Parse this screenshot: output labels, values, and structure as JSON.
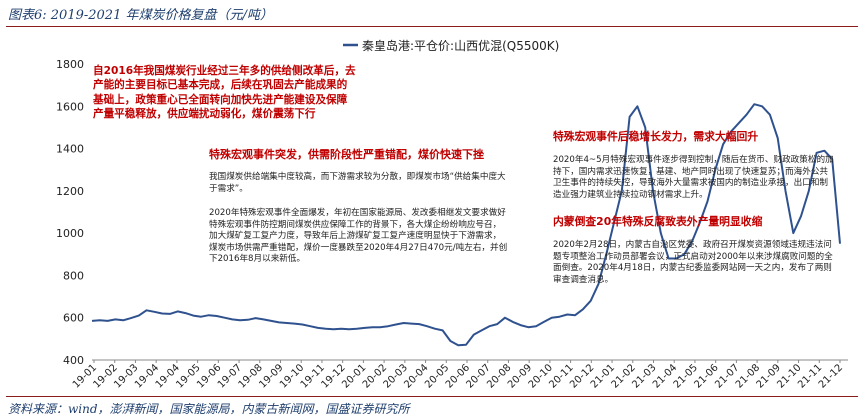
{
  "header": {
    "figure_title": "图表6:  2019-2021 年煤炭价格复盘（元/吨）"
  },
  "source": "资料来源：wind，澎湃新闻，国家能源局，内蒙古新闻网，国盛证券研究所",
  "annotations": {
    "box1": "自2016年我国煤炭行业经过三年多的供给侧改革后，去产能的主要目标已基本完成，后续在巩固去产能成果的基础上，政策重心已全面转向加快先进产能建设及保障产量平稳释放，供应端扰动弱化，煤价震荡下行",
    "heading2": "特殊宏观事件突发，供需阶段性严重错配，煤价快速下挫",
    "para2a": "我国煤炭供给端集中度较高，而下游需求较为分散，即煤炭市场“供给集中度大于需求”。",
    "para2b": "2020年特殊宏观事件全面爆发，年初在国家能源局、发改委相继发文要求做好特殊宏观事件防控期间煤炭供应保障工作的背景下，各大煤企纷纷响应号召，加大煤矿复工复产力度，导致年后上游煤矿复工复产速度明显快于下游需求，煤炭市场供需严重错配，煤价一度暴跌至2020年4月27日470元/吨左右，并创下2016年8月以来新低。",
    "heading3": "特殊宏观事件后稳增长发力，需求大幅回升",
    "para3": "2020年4~5月特殊宏观事件逐步得到控制，随后在货币、财政政策松的加持下，国内需求迅速恢复，基建、地产同时出现了快速复苏；而海外公共卫生事件的持续失控，导致海外大量需求被国内的制造业承接，出口和制造业强力建筑业持续拉动钢材需求上升。",
    "heading4": "内蒙倒查20年特殊反腐致表外产量明显收缩",
    "para4": "2020年2月28日，内蒙古自治区党委、政府召开煤炭资源领域违规违法问题专项整治工作动员部署会议，正式启动对2000年以来涉煤腐败问题的全面倒查。2020年4月18日，内蒙古纪委监委网站网一天之内，发布了两则审查调查消息。"
  },
  "chart_data": {
    "type": "line",
    "title": "",
    "legend": {
      "position": "top-center"
    },
    "grid": false,
    "xlabel": "",
    "ylabel": "",
    "ylim": [
      400,
      1800
    ],
    "yticks": [
      400,
      600,
      800,
      1000,
      1200,
      1400,
      1600,
      1800
    ],
    "x_tick_labels": [
      "19-01",
      "19-02",
      "19-03",
      "19-04",
      "19-04",
      "19-05",
      "19-06",
      "19-07",
      "19-08",
      "19-09",
      "19-10",
      "19-11",
      "19-12",
      "20-01",
      "20-02",
      "20-03",
      "20-04",
      "20-05",
      "20-06",
      "20-07",
      "20-08",
      "20-09",
      "20-10",
      "20-11",
      "20-12",
      "21-01",
      "21-02",
      "21-03",
      "21-04",
      "21-05",
      "21-06",
      "21-07",
      "21-08",
      "21-09",
      "21-10",
      "21-11",
      "21-12"
    ],
    "series": [
      {
        "name": "秦皇岛港:平仓价:山西优混(Q5500K)",
        "color": "#2f528f",
        "values": [
          585,
          588,
          585,
          592,
          588,
          598,
          610,
          635,
          628,
          620,
          618,
          630,
          622,
          610,
          605,
          612,
          608,
          600,
          592,
          588,
          590,
          598,
          592,
          585,
          578,
          575,
          572,
          568,
          560,
          552,
          548,
          545,
          548,
          545,
          548,
          552,
          555,
          555,
          560,
          568,
          575,
          572,
          570,
          560,
          548,
          540,
          490,
          470,
          472,
          520,
          540,
          560,
          570,
          600,
          580,
          565,
          555,
          560,
          580,
          600,
          605,
          615,
          612,
          640,
          680,
          760,
          900,
          1050,
          1200,
          1550,
          1600,
          1500,
          1200,
          1000,
          880,
          880,
          900,
          960,
          1050,
          1150,
          1300,
          1420,
          1480,
          1520,
          1560,
          1610,
          1600,
          1560,
          1450,
          1200,
          1000,
          1080,
          1200,
          1380,
          1390,
          1350,
          950
        ]
      }
    ]
  }
}
